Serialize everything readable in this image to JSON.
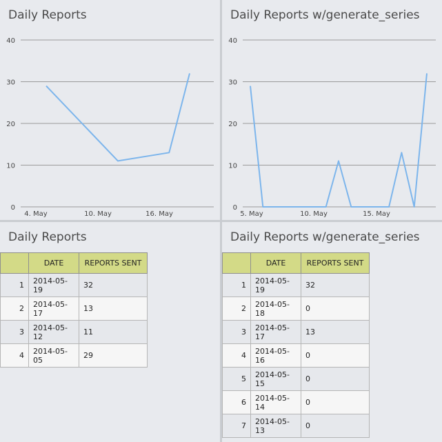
{
  "panels": [
    {
      "title": "Daily Reports",
      "chart_data": {
        "type": "line",
        "title": "Daily Reports",
        "x": [
          "2014-05-05",
          "2014-05-12",
          "2014-05-17",
          "2014-05-19"
        ],
        "series": [
          {
            "values": [
              29,
              11,
              13,
              32
            ]
          }
        ],
        "ylim": [
          0,
          40
        ],
        "yticks": [
          0,
          10,
          20,
          30,
          40
        ],
        "xticks": [
          "4. May",
          "10. May",
          "16. May"
        ],
        "grid": true,
        "color": "#7cb5ec"
      }
    },
    {
      "title": "Daily Reports w/generate_series",
      "chart_data": {
        "type": "line",
        "title": "Daily Reports w/generate_series",
        "x": [
          "2014-05-05",
          "2014-05-06",
          "2014-05-07",
          "2014-05-08",
          "2014-05-09",
          "2014-05-10",
          "2014-05-11",
          "2014-05-12",
          "2014-05-13",
          "2014-05-14",
          "2014-05-15",
          "2014-05-16",
          "2014-05-17",
          "2014-05-18",
          "2014-05-19"
        ],
        "series": [
          {
            "values": [
              29,
              0,
              0,
              0,
              0,
              0,
              0,
              11,
              0,
              0,
              0,
              0,
              13,
              0,
              32
            ]
          }
        ],
        "ylim": [
          0,
          40
        ],
        "yticks": [
          0,
          10,
          20,
          30,
          40
        ],
        "xticks": [
          "5. May",
          "10. May",
          "15. May"
        ],
        "grid": true,
        "color": "#7cb5ec"
      }
    }
  ],
  "tables": [
    {
      "title": "Daily Reports",
      "columns": [
        "",
        "DATE",
        "REPORTS SENT"
      ],
      "rows": [
        [
          "1",
          "2014-05-19",
          "32"
        ],
        [
          "2",
          "2014-05-17",
          "13"
        ],
        [
          "3",
          "2014-05-12",
          "11"
        ],
        [
          "4",
          "2014-05-05",
          "29"
        ]
      ]
    },
    {
      "title": "Daily Reports w/generate_series",
      "columns": [
        "",
        "DATE",
        "REPORTS SENT"
      ],
      "rows": [
        [
          "1",
          "2014-05-19",
          "32"
        ],
        [
          "2",
          "2014-05-18",
          "0"
        ],
        [
          "3",
          "2014-05-17",
          "13"
        ],
        [
          "4",
          "2014-05-16",
          "0"
        ],
        [
          "5",
          "2014-05-15",
          "0"
        ],
        [
          "6",
          "2014-05-14",
          "0"
        ],
        [
          "7",
          "2014-05-13",
          "0"
        ]
      ]
    }
  ],
  "colors": {
    "header": "#d3da87",
    "line": "#7cb5ec"
  }
}
